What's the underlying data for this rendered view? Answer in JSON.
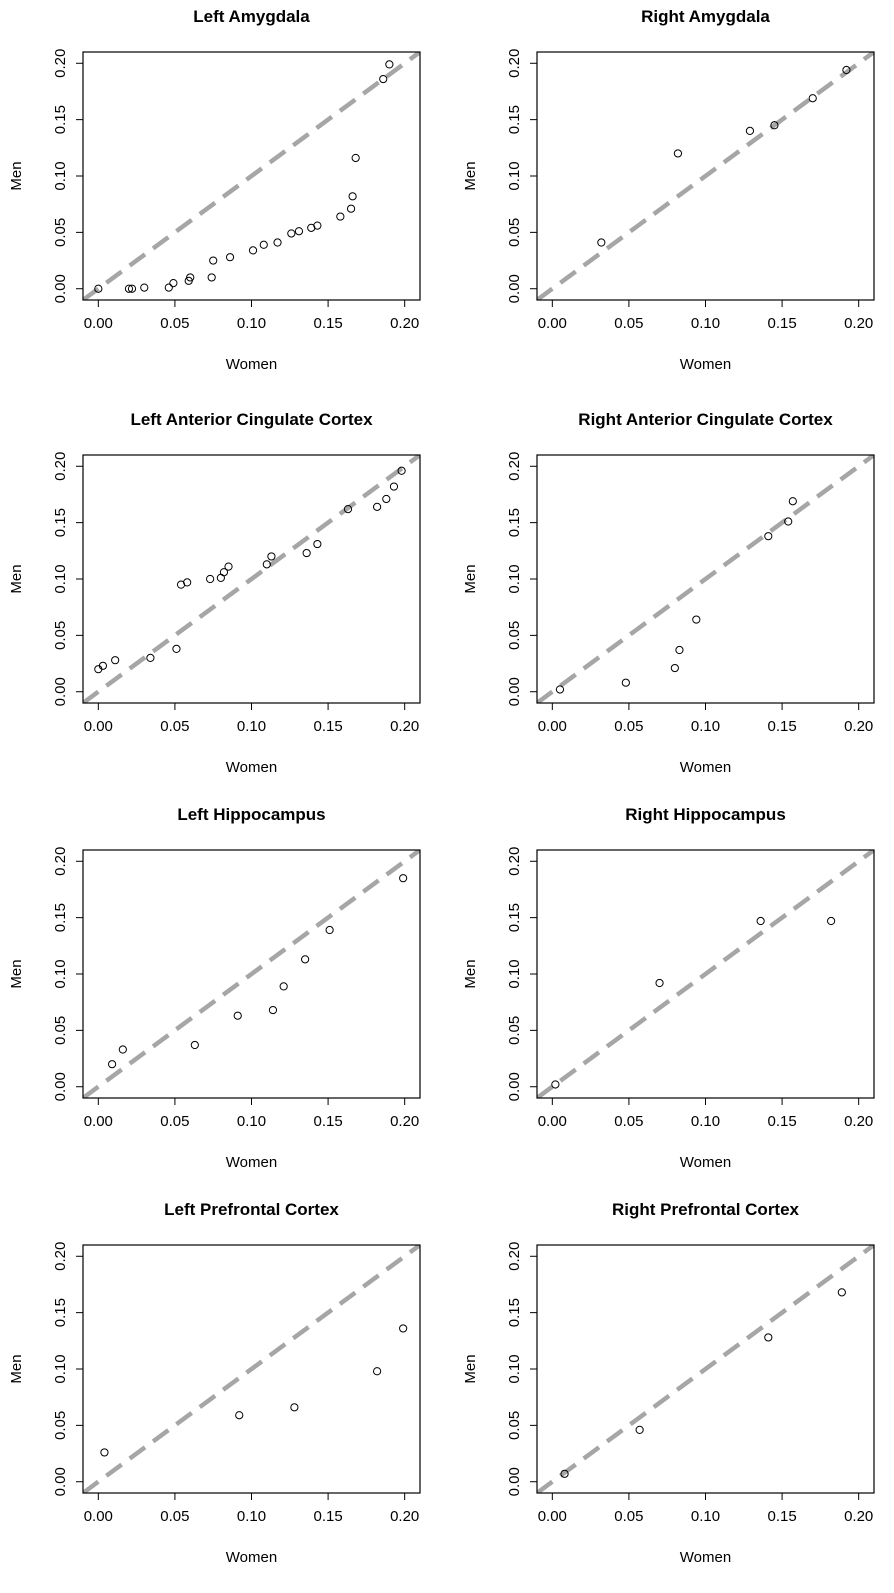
{
  "chart_data": [
    {
      "type": "scatter",
      "title": "Left Amygdala",
      "xlabel": "Women",
      "ylabel": "Men",
      "xlim": [
        -0.01,
        0.21
      ],
      "ylim": [
        -0.01,
        0.21
      ],
      "xticks": [
        "0.00",
        "0.05",
        "0.10",
        "0.15",
        "0.20"
      ],
      "yticks": [
        "0.00",
        "0.05",
        "0.10",
        "0.15",
        "0.20"
      ],
      "reference_line": "y = x (dashed grey)",
      "points": [
        [
          0.0,
          0.0
        ],
        [
          0.02,
          0.0
        ],
        [
          0.022,
          0.0
        ],
        [
          0.03,
          0.001
        ],
        [
          0.046,
          0.001
        ],
        [
          0.049,
          0.005
        ],
        [
          0.059,
          0.007
        ],
        [
          0.06,
          0.01
        ],
        [
          0.074,
          0.01
        ],
        [
          0.075,
          0.025
        ],
        [
          0.086,
          0.028
        ],
        [
          0.101,
          0.034
        ],
        [
          0.108,
          0.039
        ],
        [
          0.117,
          0.041
        ],
        [
          0.126,
          0.049
        ],
        [
          0.131,
          0.051
        ],
        [
          0.139,
          0.054
        ],
        [
          0.143,
          0.056
        ],
        [
          0.158,
          0.064
        ],
        [
          0.165,
          0.071
        ],
        [
          0.166,
          0.082
        ],
        [
          0.168,
          0.116
        ],
        [
          0.186,
          0.186
        ],
        [
          0.19,
          0.199
        ]
      ]
    },
    {
      "type": "scatter",
      "title": "Right Amygdala",
      "xlabel": "Women",
      "ylabel": "Men",
      "xlim": [
        -0.01,
        0.21
      ],
      "ylim": [
        -0.01,
        0.21
      ],
      "xticks": [
        "0.00",
        "0.05",
        "0.10",
        "0.15",
        "0.20"
      ],
      "yticks": [
        "0.00",
        "0.05",
        "0.10",
        "0.15",
        "0.20"
      ],
      "reference_line": "y = x (dashed grey)",
      "points": [
        [
          0.032,
          0.041
        ],
        [
          0.082,
          0.12
        ],
        [
          0.129,
          0.14
        ],
        [
          0.145,
          0.145
        ],
        [
          0.17,
          0.169
        ],
        [
          0.192,
          0.194
        ]
      ]
    },
    {
      "type": "scatter",
      "title": "Left Anterior Cingulate Cortex",
      "xlabel": "Women",
      "ylabel": "Men",
      "xlim": [
        -0.01,
        0.21
      ],
      "ylim": [
        -0.01,
        0.21
      ],
      "xticks": [
        "0.00",
        "0.05",
        "0.10",
        "0.15",
        "0.20"
      ],
      "yticks": [
        "0.00",
        "0.05",
        "0.10",
        "0.15",
        "0.20"
      ],
      "reference_line": "y = x (dashed grey)",
      "points": [
        [
          0.0,
          0.02
        ],
        [
          0.003,
          0.023
        ],
        [
          0.011,
          0.028
        ],
        [
          0.034,
          0.03
        ],
        [
          0.051,
          0.038
        ],
        [
          0.054,
          0.095
        ],
        [
          0.058,
          0.097
        ],
        [
          0.073,
          0.1
        ],
        [
          0.08,
          0.101
        ],
        [
          0.082,
          0.106
        ],
        [
          0.085,
          0.111
        ],
        [
          0.11,
          0.113
        ],
        [
          0.113,
          0.12
        ],
        [
          0.136,
          0.123
        ],
        [
          0.143,
          0.131
        ],
        [
          0.163,
          0.162
        ],
        [
          0.182,
          0.164
        ],
        [
          0.188,
          0.171
        ],
        [
          0.193,
          0.182
        ],
        [
          0.198,
          0.196
        ]
      ]
    },
    {
      "type": "scatter",
      "title": "Right Anterior Cingulate Cortex",
      "xlabel": "Women",
      "ylabel": "Men",
      "xlim": [
        -0.01,
        0.21
      ],
      "ylim": [
        -0.01,
        0.21
      ],
      "xticks": [
        "0.00",
        "0.05",
        "0.10",
        "0.15",
        "0.20"
      ],
      "yticks": [
        "0.00",
        "0.05",
        "0.10",
        "0.15",
        "0.20"
      ],
      "reference_line": "y = x (dashed grey)",
      "points": [
        [
          0.005,
          0.002
        ],
        [
          0.048,
          0.008
        ],
        [
          0.08,
          0.021
        ],
        [
          0.083,
          0.037
        ],
        [
          0.094,
          0.064
        ],
        [
          0.141,
          0.138
        ],
        [
          0.154,
          0.151
        ],
        [
          0.157,
          0.169
        ]
      ]
    },
    {
      "type": "scatter",
      "title": "Left Hippocampus",
      "xlabel": "Women",
      "ylabel": "Men",
      "xlim": [
        -0.01,
        0.21
      ],
      "ylim": [
        -0.01,
        0.21
      ],
      "xticks": [
        "0.00",
        "0.05",
        "0.10",
        "0.15",
        "0.20"
      ],
      "yticks": [
        "0.00",
        "0.05",
        "0.10",
        "0.15",
        "0.20"
      ],
      "reference_line": "y = x (dashed grey)",
      "points": [
        [
          0.009,
          0.02
        ],
        [
          0.016,
          0.033
        ],
        [
          0.063,
          0.037
        ],
        [
          0.091,
          0.063
        ],
        [
          0.114,
          0.068
        ],
        [
          0.121,
          0.089
        ],
        [
          0.135,
          0.113
        ],
        [
          0.151,
          0.139
        ],
        [
          0.199,
          0.185
        ]
      ]
    },
    {
      "type": "scatter",
      "title": "Right Hippocampus",
      "xlabel": "Women",
      "ylabel": "Men",
      "xlim": [
        -0.01,
        0.21
      ],
      "ylim": [
        -0.01,
        0.21
      ],
      "xticks": [
        "0.00",
        "0.05",
        "0.10",
        "0.15",
        "0.20"
      ],
      "yticks": [
        "0.00",
        "0.05",
        "0.10",
        "0.15",
        "0.20"
      ],
      "reference_line": "y = x (dashed grey)",
      "points": [
        [
          0.002,
          0.002
        ],
        [
          0.07,
          0.092
        ],
        [
          0.136,
          0.147
        ],
        [
          0.182,
          0.147
        ]
      ]
    },
    {
      "type": "scatter",
      "title": "Left Prefrontal Cortex",
      "xlabel": "Women",
      "ylabel": "Men",
      "xlim": [
        -0.01,
        0.21
      ],
      "ylim": [
        -0.01,
        0.21
      ],
      "xticks": [
        "0.00",
        "0.05",
        "0.10",
        "0.15",
        "0.20"
      ],
      "yticks": [
        "0.00",
        "0.05",
        "0.10",
        "0.15",
        "0.20"
      ],
      "reference_line": "y = x (dashed grey)",
      "points": [
        [
          0.004,
          0.026
        ],
        [
          0.092,
          0.059
        ],
        [
          0.128,
          0.066
        ],
        [
          0.182,
          0.098
        ],
        [
          0.199,
          0.136
        ]
      ]
    },
    {
      "type": "scatter",
      "title": "Right Prefrontal Cortex",
      "xlabel": "Women",
      "ylabel": "Men",
      "xlim": [
        -0.01,
        0.21
      ],
      "ylim": [
        -0.01,
        0.21
      ],
      "xticks": [
        "0.00",
        "0.05",
        "0.10",
        "0.15",
        "0.20"
      ],
      "yticks": [
        "0.00",
        "0.05",
        "0.10",
        "0.15",
        "0.20"
      ],
      "reference_line": "y = x (dashed grey)",
      "points": [
        [
          0.008,
          0.007
        ],
        [
          0.057,
          0.046
        ],
        [
          0.141,
          0.128
        ],
        [
          0.189,
          0.168
        ]
      ]
    }
  ],
  "colors": {
    "reference_line": "#a6a6a6",
    "points": "#000000",
    "frame": "#000000"
  }
}
